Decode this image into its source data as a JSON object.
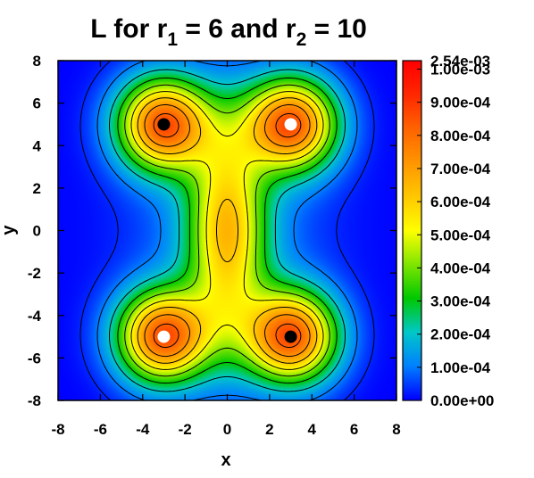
{
  "chart_data": {
    "type": "heatmap",
    "title": "L for r",
    "title_parts": {
      "prefix": "L for r",
      "sub1": "1",
      "mid": " = 6 and r",
      "sub2": "2",
      "suffix": " = 10"
    },
    "xlabel": "x",
    "ylabel": "y",
    "xlim": [
      -8,
      8
    ],
    "ylim": [
      -8,
      8
    ],
    "xticks": [
      "-8",
      "-6",
      "-4",
      "-2",
      "0",
      "2",
      "4",
      "6",
      "8"
    ],
    "yticks": [
      "-8",
      "-6",
      "-4",
      "-2",
      "0",
      "2",
      "4",
      "6",
      "8"
    ],
    "colorbar_labels": [
      "0.00e+00",
      "1.00e-04",
      "2.00e-04",
      "3.00e-04",
      "4.00e-04",
      "5.00e-04",
      "6.00e-04",
      "7.00e-04",
      "8.00e-04",
      "9.00e-04",
      "1.00e-03",
      "2.54e-03"
    ],
    "colorbar_values": [
      0,
      0.0001,
      0.0002,
      0.0003,
      0.0004,
      0.0005,
      0.0006,
      0.0007,
      0.0008,
      0.0009,
      0.001,
      0.00254
    ],
    "colors": [
      "#0000ff",
      "#0080ff",
      "#00c8c8",
      "#00c800",
      "#80e600",
      "#ffff00",
      "#ffc800",
      "#ff9600",
      "#ff6400",
      "#ff2800",
      "#ff0000"
    ],
    "points": [
      {
        "x": -3,
        "y": 5,
        "color": "black"
      },
      {
        "x": 3,
        "y": 5,
        "color": "white"
      },
      {
        "x": -3,
        "y": -5,
        "color": "white"
      },
      {
        "x": 3,
        "y": -5,
        "color": "black"
      }
    ],
    "contours": true
  }
}
